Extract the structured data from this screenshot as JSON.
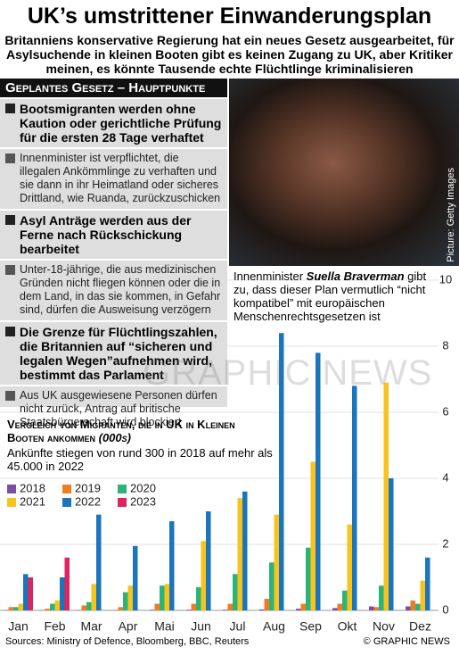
{
  "header": {
    "title": "UK’s umstrittener Einwanderungsplan",
    "subtitle": "Britanniens konservative Regierung hat ein neues Gesetz ausgearbeitet, für Asylsuchende in kleinen Booten gibt es keinen Zugang zu UK, aber Kritiker meinen, es könnte Tausende echte Flüchtlinge kriminalisieren"
  },
  "panel": {
    "heading": "Geplantes Gesetz – Hauptpunkte",
    "items": [
      {
        "title": "Bootsmigranten werden ohne Kaution oder gerichtliche Prüfung für die ersten 28 Tage verhaftet",
        "text": "Innenminister ist verpflichtet, die illegalen Ankömmlinge zu verhaften und sie dann in ihr Heimatland oder sicheres Drittland, wie Ruanda, zurückzuschicken"
      },
      {
        "title": "Asyl Anträge werden aus der Ferne nach Rückschickung bearbeitet",
        "text": "Unter-18-jährige, die aus medizinischen Gründen nicht fliegen können oder die in dem Land, in das sie kommen, in Gefahr sind, dürfen die Ausweisung verzögern"
      },
      {
        "title": "Die Grenze für Flüchtlingszahlen, die Britannien auf “sicheren und legalen Wegen”aufnehmen wird, bestimmt das Parlament",
        "text": "Aus UK ausgewiesene Personen dürfen nicht zurück, Antrag auf britische Staatsbürgerschaft wird blockiert"
      }
    ]
  },
  "photo": {
    "credit": "Picture: Getty Images"
  },
  "quote": {
    "prefix": "Innenminister",
    "name": "Suella Braverman",
    "text": "gibt zu, dass dieser Plan vermutlich “nicht kompatibel” mit europäischen Menschenrechtsgesetzen ist"
  },
  "watermark": "GRAPHIC NEWS",
  "chart_data": {
    "type": "bar",
    "title": "Vergleich von Migranten, die in UK in Kleinen Booten ankommen",
    "unit": "(000s)",
    "subtitle": "Ankünfte stiegen von rund 300 in 2018 auf mehr als 45.000 in 2022",
    "categories": [
      "Jan",
      "Feb",
      "Mar",
      "Apr",
      "Mai",
      "Jun",
      "Jul",
      "Aug",
      "Sep",
      "Okt",
      "Nov",
      "Dez"
    ],
    "series": [
      {
        "name": "2018",
        "color": "#7b4fa0",
        "values": [
          0.01,
          0.01,
          0.01,
          0.01,
          0.02,
          0.02,
          0.02,
          0.03,
          0.05,
          0.07,
          0.12,
          0.12
        ]
      },
      {
        "name": "2019",
        "color": "#f07c22",
        "values": [
          0.1,
          0.05,
          0.15,
          0.1,
          0.2,
          0.2,
          0.2,
          0.35,
          0.2,
          0.2,
          0.1,
          0.3
        ]
      },
      {
        "name": "2020",
        "color": "#2bb47a",
        "values": [
          0.1,
          0.2,
          0.25,
          0.55,
          0.75,
          0.7,
          1.1,
          1.45,
          1.9,
          0.6,
          0.75,
          0.2
        ]
      },
      {
        "name": "2021",
        "color": "#f7c31c",
        "values": [
          0.2,
          0.3,
          0.8,
          0.75,
          0.8,
          2.1,
          3.4,
          2.9,
          4.5,
          2.6,
          6.9,
          0.9
        ]
      },
      {
        "name": "2022",
        "color": "#1a75bc",
        "values": [
          1.1,
          1.0,
          2.9,
          1.95,
          2.7,
          3.0,
          3.6,
          8.4,
          7.8,
          6.8,
          4.0,
          1.6
        ]
      },
      {
        "name": "2023",
        "color": "#e0245e",
        "values": [
          1.0,
          1.6,
          null,
          null,
          null,
          null,
          null,
          null,
          null,
          null,
          null,
          null
        ]
      }
    ],
    "ylim": [
      0,
      10
    ],
    "yticks": [
      0,
      2,
      4,
      6,
      8,
      10
    ],
    "grid": true
  },
  "footer": {
    "sources": "Sources: Ministry of Defence, Bloomberg, BBC, Reuters",
    "copyright": "© GRAPHIC NEWS"
  }
}
